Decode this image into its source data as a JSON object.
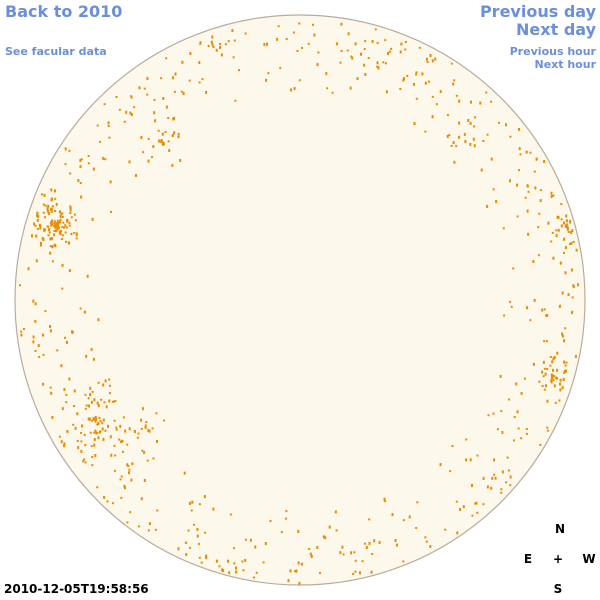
{
  "nav": {
    "back": "Back to 2010",
    "facular": "See facular data",
    "previous_day": "Previous day",
    "next_day": "Next day",
    "previous_hour": "Previous hour",
    "next_hour": "Next hour"
  },
  "timestamp": "2010-12-05T19:58:56",
  "compass": {
    "north": "N",
    "east": "E",
    "center": "+",
    "west": "W",
    "south": "S"
  }
}
